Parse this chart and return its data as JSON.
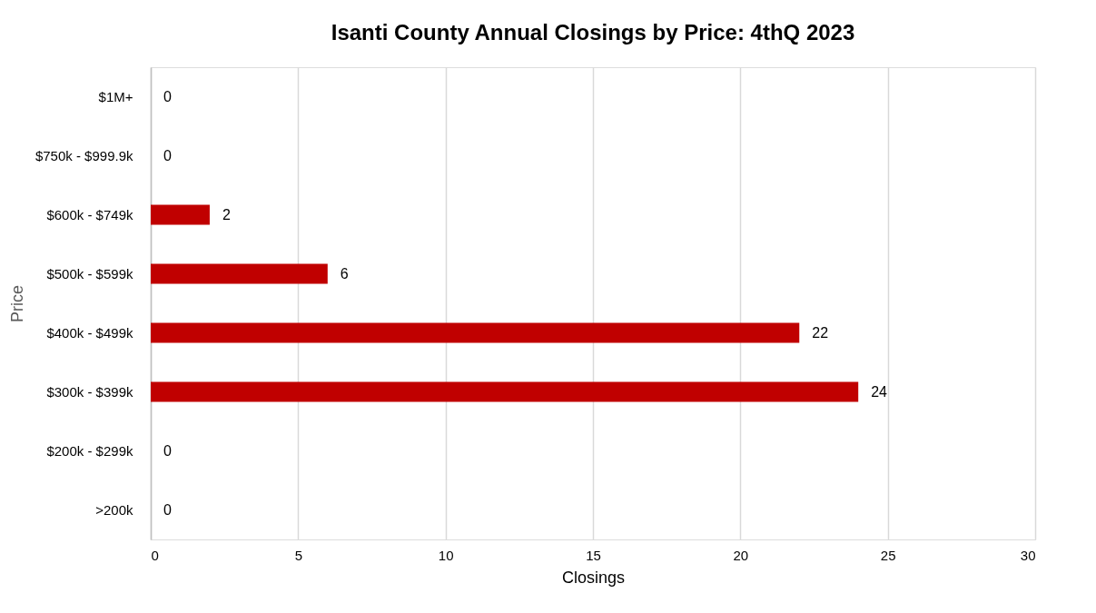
{
  "chart_data": {
    "type": "bar",
    "orientation": "horizontal",
    "title": "Isanti County  Annual Closings by Price: 4thQ 2023",
    "xlabel": "Closings",
    "ylabel": "Price",
    "categories": [
      "$1M+",
      "$750k - $999.9k",
      "$600k - $749k",
      "$500k - $599k",
      "$400k - $499k",
      "$300k - $399k",
      "$200k - $299k",
      ">200k"
    ],
    "values": [
      0,
      0,
      2,
      6,
      22,
      24,
      0,
      0
    ],
    "color": "#c00000",
    "xlim": [
      0,
      30
    ],
    "xticks": [
      0,
      5,
      10,
      15,
      20,
      25,
      30
    ],
    "grid": "x",
    "data_labels": true
  }
}
